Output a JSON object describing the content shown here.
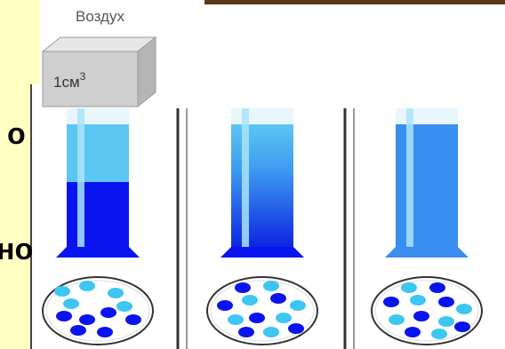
{
  "labels": {
    "air": "Воздух",
    "volume": "1см",
    "exponent": "3",
    "left_top": "о",
    "left_bottom": "но"
  }
}
